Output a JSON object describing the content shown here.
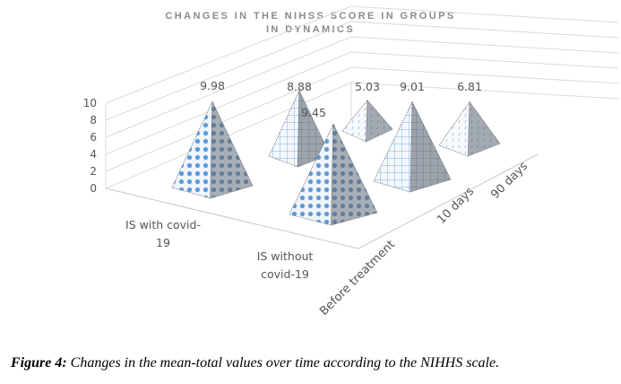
{
  "chart_data": {
    "type": "bar",
    "subtype": "3d-pyramid",
    "title_line1": "CHANGES IN THE NIHSS SCORE   IN GROUPS",
    "title_line2": "IN DYNAMICS",
    "categories": [
      "IS with covid-19",
      "IS without covid-19"
    ],
    "category_labels": [
      [
        "IS with covid-",
        "19"
      ],
      [
        "IS without",
        "covid-19"
      ]
    ],
    "series": [
      {
        "name": "Before treatment",
        "values": [
          9.98,
          9.45
        ]
      },
      {
        "name": "10 days",
        "values": [
          8.88,
          9.01
        ]
      },
      {
        "name": "90 days",
        "values": [
          5.03,
          6.81
        ]
      }
    ],
    "yticks": [
      "0",
      "2",
      "4",
      "6",
      "8",
      "10"
    ],
    "ylim": [
      0,
      10
    ],
    "grid": true,
    "colors": {
      "light": "#ffffff",
      "blue": "#5b9bd5",
      "gray": "#9aa0a8"
    }
  },
  "caption": {
    "label": "Figure 4:",
    "text": " Changes in the mean-total values over time according to the NIHHS scale."
  }
}
